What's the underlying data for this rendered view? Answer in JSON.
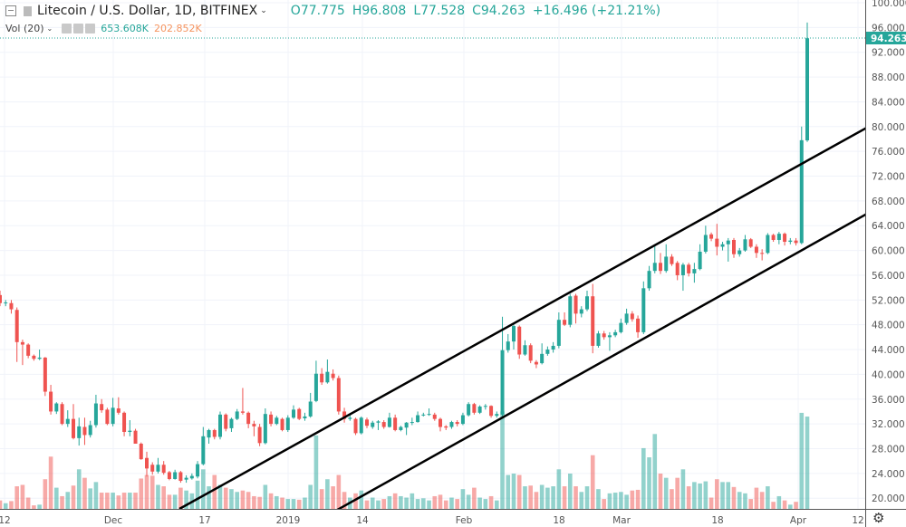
{
  "header": {
    "symbol": "Litecoin / U.S. Dollar, 1D, BITFINEX",
    "open": "O77.775",
    "high": "H96.808",
    "low": "L77.528",
    "close": "C94.263",
    "change": "+16.496 (+21.21%)"
  },
  "volume_legend": {
    "label": "Vol (20)",
    "volume": "653.608K",
    "volume_ma": "202.852K"
  },
  "icons": {
    "collapse": "minus-square-icon",
    "chevron": "chevron-down-icon",
    "settings": "gear-icon",
    "eye": "eye-icon",
    "gear_small": "settings-icon",
    "close": "close-icon"
  },
  "colors": {
    "up": "#26a69a",
    "down": "#ef5350",
    "volume_ma": "#f5935e",
    "trendline": "#000000"
  },
  "chart_data": {
    "type": "candlestick",
    "title": "Litecoin / U.S. Dollar, 1D, BITFINEX",
    "y_axis": {
      "ticks": [
        "100.000",
        "96.000",
        "92.000",
        "88.000",
        "84.000",
        "80.000",
        "76.000",
        "72.000",
        "68.000",
        "64.000",
        "60.000",
        "56.000",
        "52.000",
        "48.000",
        "44.000",
        "40.000",
        "36.000",
        "32.000",
        "28.000",
        "24.000",
        "20.000"
      ],
      "range": [
        19,
        100.5
      ],
      "position": "right"
    },
    "x_axis": {
      "ticks": [
        "12",
        "Dec",
        "17",
        "2019",
        "14",
        "Feb",
        "18",
        "Mar",
        "18",
        "Apr",
        "12"
      ]
    },
    "last_price_label": "94.263",
    "grid": true,
    "volume_unit": "K",
    "candles_ohlcv": [
      [
        52.8,
        53.5,
        51,
        51.5,
        60
      ],
      [
        51.5,
        52,
        51,
        51.6,
        40
      ],
      [
        51.5,
        52,
        49.8,
        50.5,
        55
      ],
      [
        50.4,
        50.8,
        42,
        45.2,
        160
      ],
      [
        45.2,
        45.6,
        41.5,
        44.8,
        170
      ],
      [
        44.8,
        45,
        42.6,
        43,
        80
      ],
      [
        43,
        43.2,
        42.2,
        42.5,
        25
      ],
      [
        42.5,
        44,
        42.3,
        42.7,
        30
      ],
      [
        42.7,
        42.8,
        36.5,
        37.2,
        210
      ],
      [
        37.2,
        38.3,
        33.5,
        34,
        370
      ],
      [
        34,
        35.5,
        33.6,
        35.3,
        150
      ],
      [
        35.2,
        35.5,
        31.8,
        32,
        90
      ],
      [
        32,
        34.2,
        31.5,
        32.8,
        120
      ],
      [
        32.8,
        35.2,
        29.5,
        29.7,
        165
      ],
      [
        29.7,
        33,
        28.5,
        31.6,
        280
      ],
      [
        31.5,
        33,
        28.6,
        30.2,
        220
      ],
      [
        30.2,
        32.5,
        29.8,
        31.8,
        145
      ],
      [
        31.8,
        36.7,
        31.4,
        35.3,
        190
      ],
      [
        35.2,
        36,
        33.8,
        34.2,
        115
      ],
      [
        34.3,
        34.6,
        31.8,
        32,
        115
      ],
      [
        32,
        36.2,
        31.6,
        34.6,
        115
      ],
      [
        34.5,
        36.3,
        33.5,
        33.8,
        95
      ],
      [
        33.8,
        34,
        30,
        30.7,
        115
      ],
      [
        30.7,
        32.6,
        30,
        30.9,
        115
      ],
      [
        30.9,
        31.2,
        28.8,
        28.8,
        115
      ],
      [
        28.8,
        29,
        26.2,
        26.3,
        215
      ],
      [
        26.5,
        27.5,
        23.5,
        24.8,
        240
      ],
      [
        25.4,
        25.8,
        23.8,
        24.3,
        235
      ],
      [
        24.3,
        26.5,
        24,
        25.4,
        170
      ],
      [
        25.4,
        26,
        23.8,
        24.1,
        160
      ],
      [
        24.2,
        24.4,
        22.9,
        23.1,
        100
      ],
      [
        23.1,
        24.6,
        23,
        24.2,
        100
      ],
      [
        24.2,
        24.4,
        22.5,
        22.8,
        150
      ],
      [
        23,
        23.7,
        22.5,
        23.3,
        130
      ],
      [
        23.2,
        24,
        23,
        23.6,
        110
      ],
      [
        23.5,
        26,
        23.2,
        25.5,
        200
      ],
      [
        25.5,
        31.5,
        25.3,
        30,
        280
      ],
      [
        29.8,
        31.2,
        28.8,
        31,
        160
      ],
      [
        31,
        31.2,
        29.5,
        29.9,
        240
      ],
      [
        29.9,
        34,
        29.5,
        33.5,
        170
      ],
      [
        33.5,
        33.7,
        30.8,
        31.2,
        150
      ],
      [
        31.3,
        33,
        30.7,
        32.8,
        140
      ],
      [
        32.8,
        34.4,
        32.6,
        34,
        120
      ],
      [
        34,
        37.8,
        33.5,
        33.8,
        130
      ],
      [
        33.8,
        34,
        31.3,
        32,
        120
      ],
      [
        32,
        32.5,
        30,
        31.6,
        90
      ],
      [
        31.5,
        32,
        28.4,
        28.9,
        85
      ],
      [
        28.9,
        34.5,
        28.7,
        33.6,
        170
      ],
      [
        33.5,
        34,
        31.6,
        32,
        110
      ],
      [
        32,
        33.3,
        31.8,
        33,
        90
      ],
      [
        32.8,
        33,
        30.8,
        31,
        80
      ],
      [
        31,
        33.4,
        30.7,
        33,
        70
      ],
      [
        33,
        35,
        32.8,
        34.3,
        70
      ],
      [
        34.4,
        34.6,
        32.6,
        32.8,
        65
      ],
      [
        32.9,
        33.8,
        32.5,
        33.2,
        80
      ],
      [
        33.2,
        37,
        33,
        35.6,
        170
      ],
      [
        35.7,
        42.2,
        35.5,
        40.1,
        520
      ],
      [
        40.1,
        41,
        38.3,
        38.7,
        140
      ],
      [
        38.7,
        42.4,
        38.5,
        40.4,
        210
      ],
      [
        40.1,
        40.8,
        39,
        39.4,
        160
      ],
      [
        39.4,
        39.8,
        33.5,
        34,
        240
      ],
      [
        34,
        34.6,
        32.2,
        32.8,
        120
      ],
      [
        32.8,
        33.6,
        32.5,
        33,
        80
      ],
      [
        32.8,
        33,
        30.2,
        30.5,
        110
      ],
      [
        30.5,
        33.2,
        30.3,
        33,
        130
      ],
      [
        32.7,
        33,
        31.3,
        31.7,
        60
      ],
      [
        31.5,
        32.5,
        31.2,
        32.2,
        80
      ],
      [
        32.2,
        32.6,
        31,
        32.4,
        60
      ],
      [
        32.3,
        32.6,
        31.2,
        31.5,
        70
      ],
      [
        31.5,
        33.8,
        31.4,
        33,
        90
      ],
      [
        33,
        33.5,
        30.8,
        31,
        110
      ],
      [
        31,
        31.7,
        30.8,
        31.5,
        90
      ],
      [
        31.4,
        32.3,
        30.2,
        32.2,
        80
      ],
      [
        32.2,
        33,
        31.8,
        32.3,
        110
      ],
      [
        32.3,
        34,
        32.2,
        33.4,
        70
      ],
      [
        33.4,
        33.8,
        33.2,
        33.5,
        75
      ],
      [
        33.5,
        34.5,
        33.3,
        33.6,
        60
      ],
      [
        33.5,
        33.8,
        32.5,
        32.8,
        90
      ],
      [
        32.8,
        33,
        30.8,
        31.5,
        100
      ],
      [
        31.6,
        31.8,
        31,
        31.4,
        60
      ],
      [
        31.5,
        32.5,
        31.2,
        32.3,
        80
      ],
      [
        32.3,
        32.6,
        31.6,
        32,
        70
      ],
      [
        32,
        33.8,
        31.8,
        33.4,
        140
      ],
      [
        33.4,
        35.5,
        33.2,
        35.2,
        100
      ],
      [
        35.2,
        35.4,
        33.5,
        33.8,
        150
      ],
      [
        33.8,
        35,
        33.6,
        34.8,
        80
      ],
      [
        34.8,
        35.2,
        34.3,
        34.9,
        70
      ],
      [
        34.9,
        35,
        33,
        33.3,
        90
      ],
      [
        33.3,
        34,
        33,
        33.6,
        60
      ],
      [
        33.5,
        49.3,
        33.2,
        43.9,
        690
      ],
      [
        43.9,
        46.5,
        43.5,
        45.3,
        240
      ],
      [
        45.3,
        48,
        44,
        47.8,
        250
      ],
      [
        47.7,
        47.9,
        42.5,
        43.2,
        240
      ],
      [
        43.2,
        45.5,
        43,
        44.7,
        160
      ],
      [
        44.7,
        45,
        41.8,
        42.2,
        165
      ],
      [
        42,
        42.3,
        41,
        41.6,
        120
      ],
      [
        41.8,
        45,
        41.6,
        43.3,
        170
      ],
      [
        43.3,
        44.5,
        43,
        44,
        150
      ],
      [
        44,
        45.2,
        43.5,
        44.6,
        160
      ],
      [
        44.6,
        50,
        44.2,
        48.8,
        280
      ],
      [
        48.8,
        50,
        47.8,
        48,
        160
      ],
      [
        48,
        53,
        47.6,
        52.6,
        250
      ],
      [
        52.7,
        53,
        48.2,
        49.8,
        160
      ],
      [
        49.8,
        51,
        49.2,
        50.5,
        120
      ],
      [
        50.5,
        53.5,
        50.2,
        52.6,
        160
      ],
      [
        52.6,
        54.6,
        43.4,
        44.6,
        380
      ],
      [
        44.6,
        47,
        44.3,
        46.6,
        140
      ],
      [
        46.6,
        47,
        45.6,
        46,
        70
      ],
      [
        46,
        46.8,
        43.8,
        46.3,
        110
      ],
      [
        46.3,
        47.2,
        46,
        46.8,
        115
      ],
      [
        46.8,
        49,
        46.6,
        48.3,
        120
      ],
      [
        48.3,
        50.6,
        48,
        49.8,
        100
      ],
      [
        49.8,
        50.2,
        48.5,
        48.9,
        130
      ],
      [
        49,
        49.5,
        45.9,
        46.8,
        135
      ],
      [
        46.8,
        55,
        46.5,
        53.9,
        430
      ],
      [
        53.9,
        57.5,
        53.5,
        56.7,
        365
      ],
      [
        56.7,
        60.8,
        56.3,
        58,
        530
      ],
      [
        58,
        59.6,
        56.2,
        56.7,
        250
      ],
      [
        56.7,
        61,
        56.4,
        59,
        220
      ],
      [
        59,
        59.4,
        57.5,
        57.8,
        140
      ],
      [
        58,
        58.3,
        55.2,
        56,
        220
      ],
      [
        56,
        58,
        53.5,
        57.7,
        280
      ],
      [
        57.7,
        58,
        55.8,
        56.3,
        160
      ],
      [
        56.3,
        58,
        54.8,
        57,
        190
      ],
      [
        57,
        61,
        56.8,
        59.8,
        180
      ],
      [
        59.8,
        64,
        59.5,
        62.5,
        195
      ],
      [
        62.6,
        62.9,
        61.5,
        61.9,
        80
      ],
      [
        61.9,
        64.3,
        59.2,
        60.6,
        210
      ],
      [
        60.6,
        61.4,
        60,
        61,
        190
      ],
      [
        61,
        62,
        58.2,
        61.6,
        190
      ],
      [
        61.7,
        62,
        58.8,
        59.4,
        155
      ],
      [
        59.4,
        60.4,
        59,
        60,
        120
      ],
      [
        60,
        62.5,
        59.8,
        61.8,
        110
      ],
      [
        61.8,
        62,
        60.4,
        60.6,
        70
      ],
      [
        60.6,
        61,
        58.8,
        59.6,
        150
      ],
      [
        59.6,
        60.2,
        58.4,
        59.5,
        120
      ],
      [
        59.6,
        62.8,
        59.4,
        62.5,
        160
      ],
      [
        62.5,
        62.7,
        61.4,
        61.7,
        50
      ],
      [
        61.7,
        63,
        61,
        62.7,
        90
      ],
      [
        62.7,
        62.9,
        60.8,
        61.4,
        60
      ],
      [
        61.4,
        62,
        61,
        61.6,
        30
      ],
      [
        61.6,
        62,
        60.8,
        61.2,
        50
      ],
      [
        61.2,
        80,
        61,
        77.8,
        680
      ],
      [
        77.775,
        96.808,
        77.528,
        94.263,
        653.608
      ]
    ]
  }
}
